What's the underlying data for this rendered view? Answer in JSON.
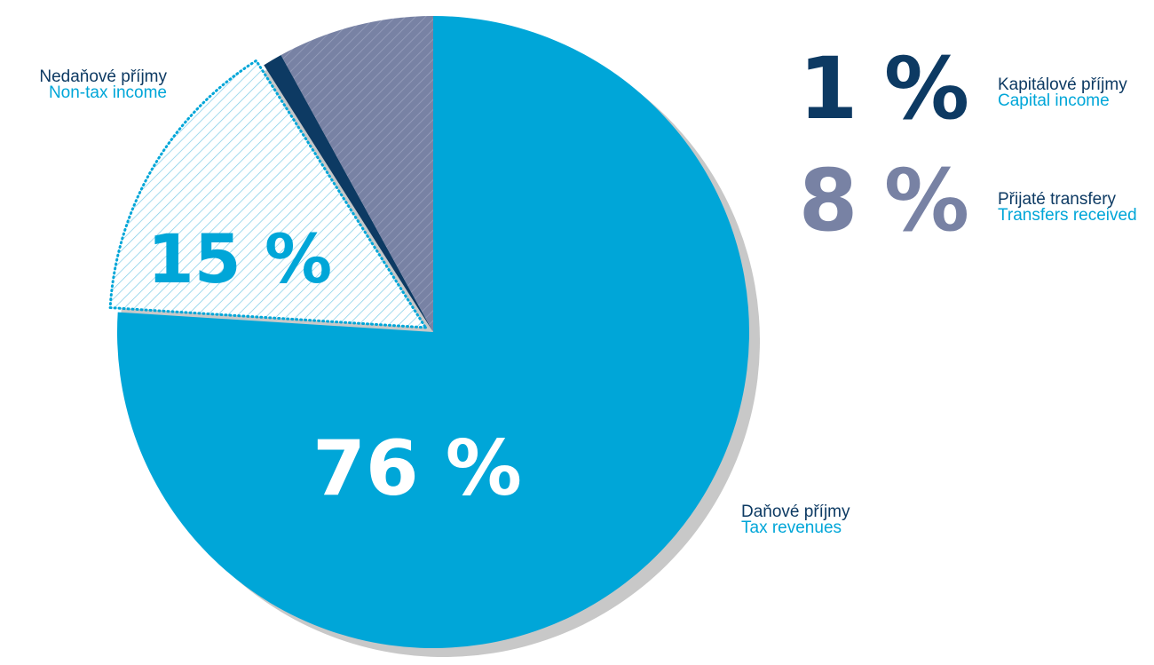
{
  "chart_data": {
    "type": "pie",
    "start": "12 o'clock",
    "direction": "clockwise",
    "slices": [
      {
        "label_cz": "Daňové příjmy",
        "label_en": "Tax revenues",
        "value": 76,
        "display": "76 %",
        "color": "#00a6d8",
        "pattern": "solid"
      },
      {
        "label_cz": "Nedaňové příjmy",
        "label_en": "Non-tax income",
        "value": 15,
        "display": "15 %",
        "color": "#00a6d8",
        "pattern": "hatched-light"
      },
      {
        "label_cz": "Kapitálové příjmy",
        "label_en": "Capital income",
        "value": 1,
        "display": "1 %",
        "color": "#0d3a63",
        "pattern": "solid"
      },
      {
        "label_cz": "Přijaté transfery",
        "label_en": "Transfers received",
        "value": 8,
        "display": "8 %",
        "color": "#7882a4",
        "pattern": "hatched-dark"
      }
    ]
  },
  "colors": {
    "cz_label": "#0d3a63",
    "en_label": "#00a6d8",
    "shadow": "#c8c8c8",
    "pct_inside": "#ffffff"
  }
}
